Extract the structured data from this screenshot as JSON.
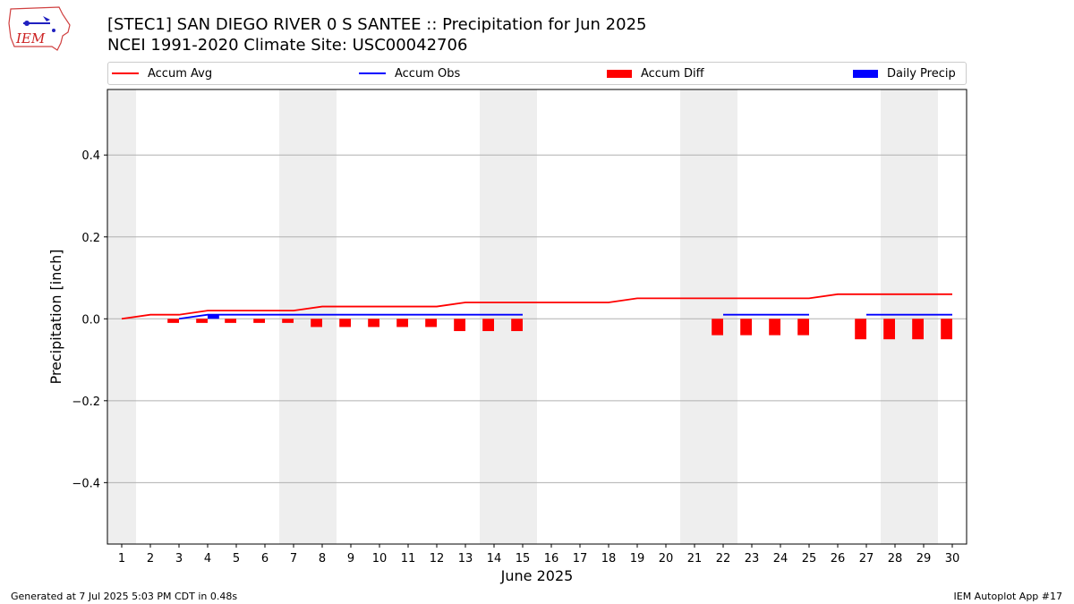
{
  "header": {
    "title_line1": "[STEC1] SAN DIEGO RIVER 0 S SANTEE :: Precipitation for Jun 2025",
    "title_line2": "NCEI 1991-2020 Climate Site: USC00042706"
  },
  "logo": {
    "text": "IEM",
    "icon": "iem-iowa-map-logo"
  },
  "footer": {
    "left": "Generated at 7 Jul 2025 5:03 PM CDT in 0.48s",
    "right": "IEM Autoplot App #17"
  },
  "colors": {
    "accum_avg": "#ff0000",
    "accum_obs": "#0000ff",
    "accum_diff": "#ff0000",
    "daily_precip": "#0000ff",
    "weekend_shade": "#eeeeee",
    "grid": "#b0b0b0"
  },
  "chart_data": {
    "type": "bar",
    "xlabel": "June 2025",
    "ylabel": "Precipitation [inch]",
    "xlim": [
      0.5,
      30.5
    ],
    "ylim": [
      -0.55,
      0.56
    ],
    "yticks": [
      -0.4,
      -0.2,
      0.0,
      0.2,
      0.4
    ],
    "ytick_labels": [
      "−0.4",
      "−0.2",
      "0.0",
      "0.2",
      "0.4"
    ],
    "x": [
      1,
      2,
      3,
      4,
      5,
      6,
      7,
      8,
      9,
      10,
      11,
      12,
      13,
      14,
      15,
      16,
      17,
      18,
      19,
      20,
      21,
      22,
      23,
      24,
      25,
      26,
      27,
      28,
      29,
      30
    ],
    "grid": "horizontal",
    "legend_position": "top",
    "weekend_shading_days": [
      1,
      7,
      8,
      14,
      15,
      21,
      22,
      28,
      29
    ],
    "series": [
      {
        "name": "Accum Avg",
        "kind": "line",
        "values": [
          0.0,
          0.01,
          0.01,
          0.02,
          0.02,
          0.02,
          0.02,
          0.03,
          0.03,
          0.03,
          0.03,
          0.03,
          0.04,
          0.04,
          0.04,
          0.04,
          0.04,
          0.04,
          0.05,
          0.05,
          0.05,
          0.05,
          0.05,
          0.05,
          0.05,
          0.06,
          0.06,
          0.06,
          0.06,
          0.06
        ]
      },
      {
        "name": "Accum Obs",
        "kind": "line",
        "segments": [
          {
            "x": [
              3,
              4,
              5,
              6,
              7,
              8,
              9,
              10,
              11,
              12,
              13,
              14,
              15
            ],
            "values": [
              0.0,
              0.01,
              0.01,
              0.01,
              0.01,
              0.01,
              0.01,
              0.01,
              0.01,
              0.01,
              0.01,
              0.01,
              0.01
            ]
          },
          {
            "x": [
              22,
              23,
              24,
              25
            ],
            "values": [
              0.01,
              0.01,
              0.01,
              0.01
            ]
          },
          {
            "x": [
              27,
              28,
              29,
              30
            ],
            "values": [
              0.01,
              0.01,
              0.01,
              0.01
            ]
          }
        ]
      },
      {
        "name": "Accum Diff",
        "kind": "bar",
        "offset": -0.2,
        "x": [
          3,
          4,
          5,
          6,
          7,
          8,
          9,
          10,
          11,
          12,
          13,
          14,
          15,
          22,
          23,
          24,
          25,
          27,
          28,
          29,
          30
        ],
        "values": [
          -0.01,
          -0.01,
          -0.01,
          -0.01,
          -0.01,
          -0.02,
          -0.02,
          -0.02,
          -0.02,
          -0.02,
          -0.03,
          -0.03,
          -0.03,
          -0.04,
          -0.04,
          -0.04,
          -0.04,
          -0.05,
          -0.05,
          -0.05,
          -0.05
        ]
      },
      {
        "name": "Daily Precip",
        "kind": "bar",
        "offset": 0.2,
        "x": [
          4
        ],
        "values": [
          0.01
        ]
      }
    ]
  }
}
